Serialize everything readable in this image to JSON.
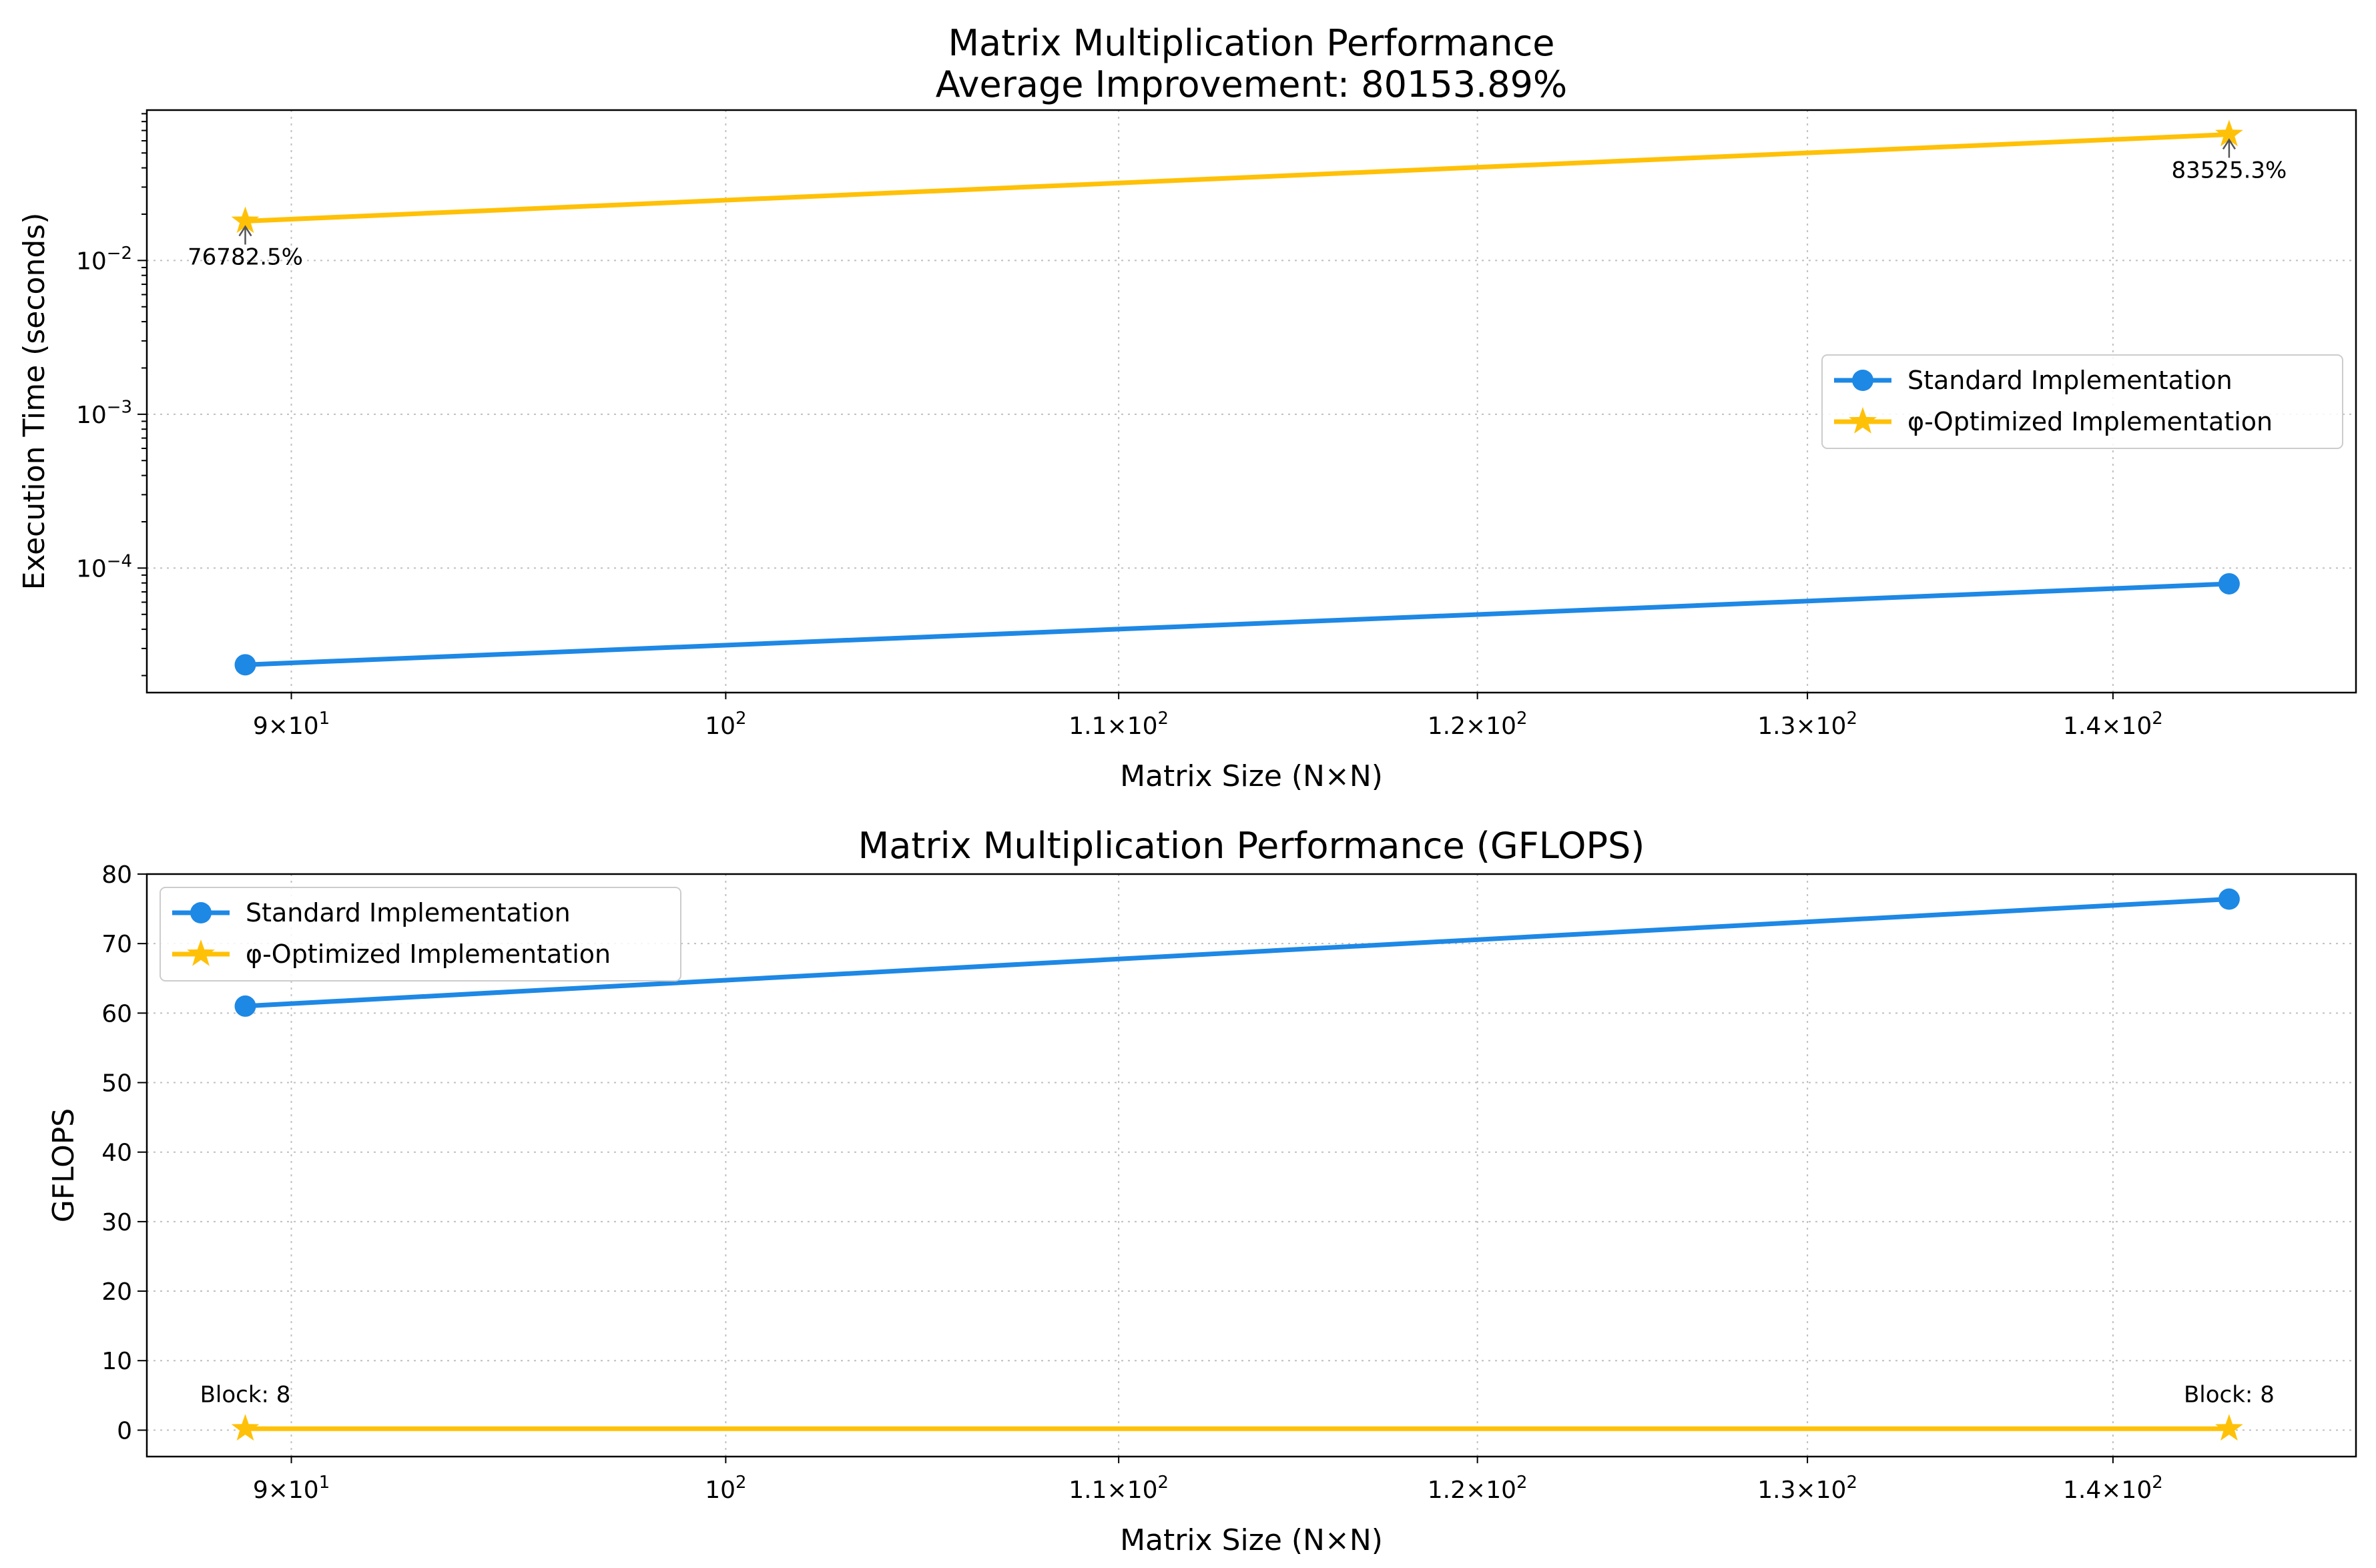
{
  "colors": {
    "standard": "#1E88E5",
    "optimized": "#FFC107",
    "grid": "#b0b0b0",
    "axis": "#000000"
  },
  "chart_data": [
    {
      "type": "line",
      "title_line1": "Matrix Multiplication Performance",
      "title_line2": "Average Improvement: 80153.89%",
      "xlabel": "Matrix Size (N×N)",
      "ylabel": "Execution Time (seconds)",
      "xscale": "log",
      "yscale": "log",
      "xlim": [
        86.9,
        148.5
      ],
      "ylim": [
        1.55e-05,
        0.095
      ],
      "x": [
        89,
        144
      ],
      "xticks": [
        {
          "value": 90,
          "base": "9×10",
          "exp": "1"
        },
        {
          "value": 100,
          "base": "10",
          "exp": "2"
        },
        {
          "value": 110,
          "base": "1.1×10",
          "exp": "2"
        },
        {
          "value": 120,
          "base": "1.2×10",
          "exp": "2"
        },
        {
          "value": 130,
          "base": "1.3×10",
          "exp": "2"
        },
        {
          "value": 140,
          "base": "1.4×10",
          "exp": "2"
        }
      ],
      "yticks": [
        {
          "value": 0.0001,
          "base": "10",
          "exp": "−4"
        },
        {
          "value": 0.001,
          "base": "10",
          "exp": "−3"
        },
        {
          "value": 0.01,
          "base": "10",
          "exp": "−2"
        }
      ],
      "grid": true,
      "legend_position": "center-right",
      "series": [
        {
          "name": "Standard Implementation",
          "marker": "circle",
          "values": [
            2.35e-05,
            7.9e-05
          ]
        },
        {
          "name": "φ-Optimized Implementation",
          "marker": "star",
          "values": [
            0.018,
            0.066
          ]
        }
      ],
      "annotations": [
        {
          "text": "76782.5%",
          "x": 89,
          "y": 0.018
        },
        {
          "text": "83525.3%",
          "x": 144,
          "y": 0.066
        }
      ]
    },
    {
      "type": "line",
      "title_line1": "Matrix Multiplication Performance (GFLOPS)",
      "xlabel": "Matrix Size (N×N)",
      "ylabel": "GFLOPS",
      "xscale": "log",
      "yscale": "linear",
      "xlim": [
        86.9,
        148.5
      ],
      "ylim": [
        -3.8,
        80
      ],
      "x": [
        89,
        144
      ],
      "xticks": [
        {
          "value": 90,
          "base": "9×10",
          "exp": "1"
        },
        {
          "value": 100,
          "base": "10",
          "exp": "2"
        },
        {
          "value": 110,
          "base": "1.1×10",
          "exp": "2"
        },
        {
          "value": 120,
          "base": "1.2×10",
          "exp": "2"
        },
        {
          "value": 130,
          "base": "1.3×10",
          "exp": "2"
        },
        {
          "value": 140,
          "base": "1.4×10",
          "exp": "2"
        }
      ],
      "yticks": [
        {
          "value": 0,
          "label": "0"
        },
        {
          "value": 10,
          "label": "10"
        },
        {
          "value": 20,
          "label": "20"
        },
        {
          "value": 30,
          "label": "30"
        },
        {
          "value": 40,
          "label": "40"
        },
        {
          "value": 50,
          "label": "50"
        },
        {
          "value": 60,
          "label": "60"
        },
        {
          "value": 70,
          "label": "70"
        },
        {
          "value": 80,
          "label": "80"
        }
      ],
      "grid": true,
      "legend_position": "upper-left",
      "series": [
        {
          "name": "Standard Implementation",
          "marker": "circle",
          "values": [
            61,
            76.4
          ]
        },
        {
          "name": "φ-Optimized Implementation",
          "marker": "star",
          "values": [
            0.2,
            0.2
          ]
        }
      ],
      "annotations": [
        {
          "text": "Block: 8",
          "x": 89,
          "y": 0.2
        },
        {
          "text": "Block: 8",
          "x": 144,
          "y": 0.2
        }
      ]
    }
  ]
}
